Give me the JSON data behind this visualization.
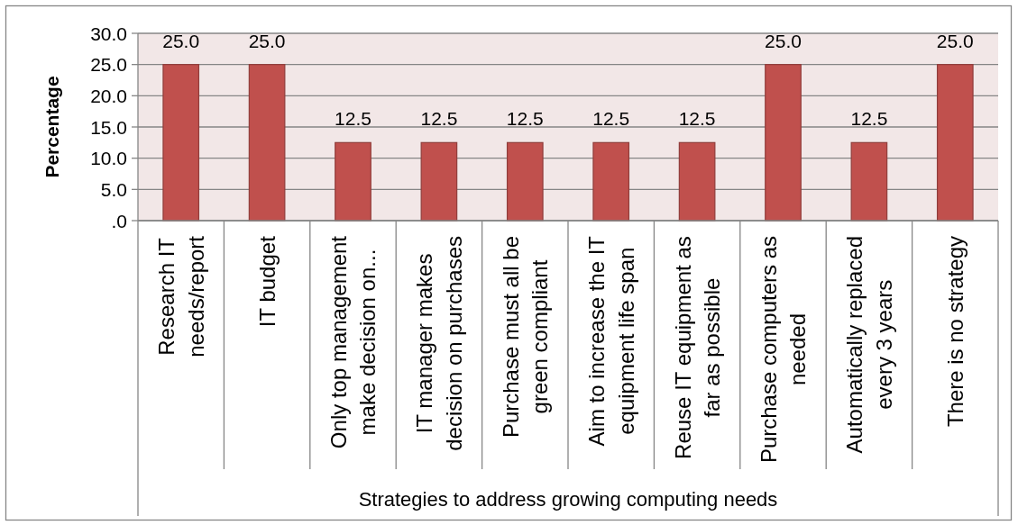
{
  "chart_data": {
    "type": "bar",
    "categories": [
      "Research IT needs/report",
      "IT budget",
      "Only top management make decision on...",
      "IT manager makes decision on purchases",
      "Purchase must all be green compliant",
      "Aim to increase the IT equipment life span",
      "Reuse IT equipment as far as possible",
      "Purchase computers as needed",
      "Automatically replaced every 3 years",
      "There is no strategy"
    ],
    "values": [
      25,
      25,
      12.5,
      12.5,
      12.5,
      12.5,
      12.5,
      25,
      12.5,
      25
    ],
    "color": "#c0504d",
    "value_labels": [
      "25.0",
      "25.0",
      "12.5",
      "12.5",
      "12.5",
      "12.5",
      "12.5",
      "25.0",
      "12.5",
      "25.0"
    ],
    "xlabel": "Strategies to address growing computing needs",
    "ylabel": "Percentage",
    "ylim": [
      0,
      30
    ],
    "yticks": [
      {
        "value": 0,
        "label": ".0"
      },
      {
        "value": 5,
        "label": "5.0"
      },
      {
        "value": 10,
        "label": "10.0"
      },
      {
        "value": 15,
        "label": "15.0"
      },
      {
        "value": 20,
        "label": "20.0"
      },
      {
        "value": 25,
        "label": "25.0"
      },
      {
        "value": 30,
        "label": "30.0"
      }
    ],
    "grid": "y"
  }
}
